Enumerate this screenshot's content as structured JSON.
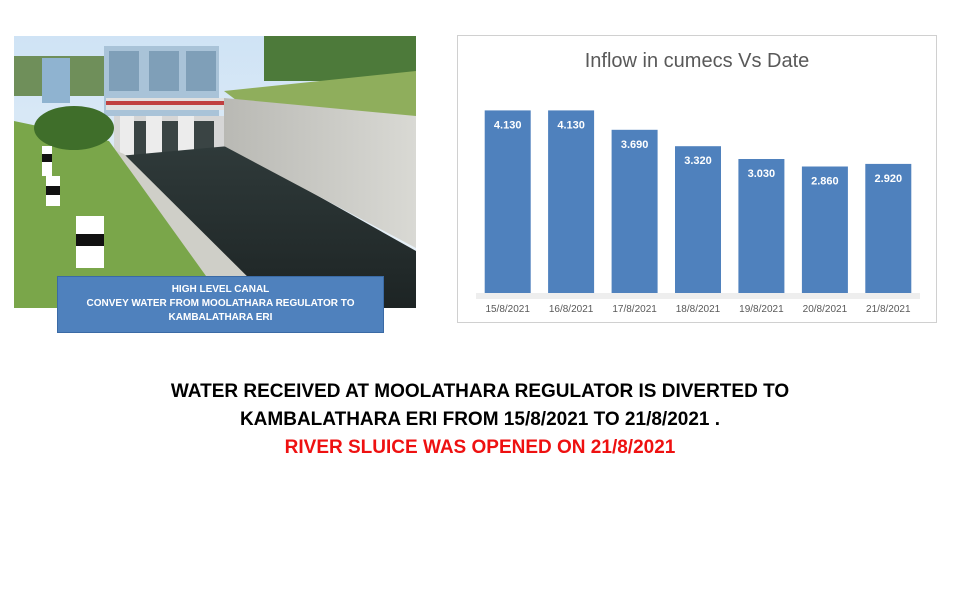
{
  "photo": {
    "caption_lines": [
      "HIGH  LEVEL CANAL",
      "CONVEY  WATER  FROM  MOOLATHARA  REGULATOR  TO",
      "KAMBALATHARA  ERI"
    ]
  },
  "chart_data": {
    "type": "bar",
    "title": "Inflow in cumecs Vs Date",
    "categories": [
      "15/8/2021",
      "16/8/2021",
      "17/8/2021",
      "18/8/2021",
      "19/8/2021",
      "20/8/2021",
      "21/8/2021"
    ],
    "values": [
      4.13,
      4.13,
      3.69,
      3.32,
      3.03,
      2.86,
      2.92
    ],
    "data_labels": [
      "4.130",
      "4.130",
      "3.690",
      "3.320",
      "3.030",
      "2.860",
      "2.920"
    ],
    "ylim": [
      0,
      4.5
    ],
    "grid": false,
    "bar_color": "#4f81bd"
  },
  "text": {
    "line1": "WATER RECEIVED AT MOOLATHARA REGULATOR IS DIVERTED TO",
    "line2": "KAMBALATHARA ERI FROM 15/8/2021  TO 21/8/2021  .",
    "line3": "RIVER SLUICE WAS OPENED ON 21/8/2021"
  },
  "colors": {
    "accent": "#4f81bd",
    "highlight": "#ee1111"
  }
}
